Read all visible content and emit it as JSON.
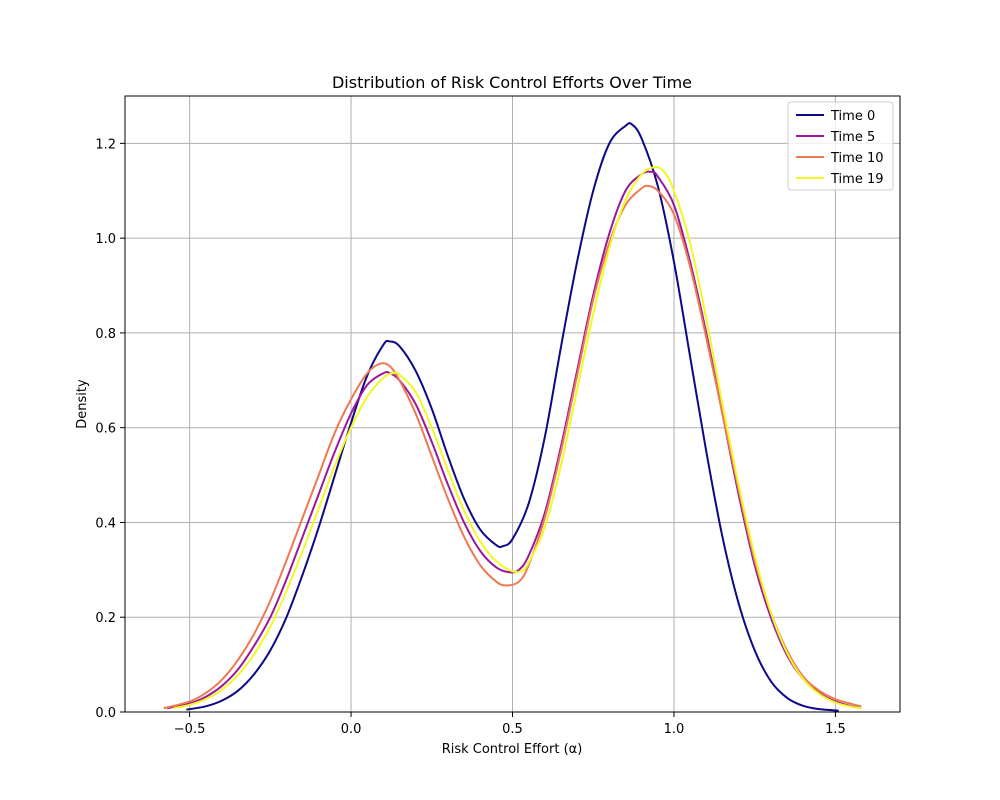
{
  "chart_data": {
    "type": "line",
    "title": "Distribution of Risk Control Efforts Over Time",
    "xlabel": "Risk Control Effort (α)",
    "ylabel": "Density",
    "xlim": [
      -0.7,
      1.7
    ],
    "ylim": [
      0.0,
      1.3
    ],
    "xticks": [
      -0.5,
      0.0,
      0.5,
      1.0,
      1.5
    ],
    "xtick_labels": [
      "−0.5",
      "0.0",
      "0.5",
      "1.0",
      "1.5"
    ],
    "yticks": [
      0.0,
      0.2,
      0.4,
      0.6,
      0.8,
      1.0,
      1.2
    ],
    "ytick_labels": [
      "0.0",
      "0.2",
      "0.4",
      "0.6",
      "0.8",
      "1.0",
      "1.2"
    ],
    "grid": true,
    "legend_position": "top-right",
    "series": [
      {
        "name": "Time 0",
        "color": "#0d0887",
        "points": [
          [
            -0.51,
            0.005
          ],
          [
            -0.45,
            0.012
          ],
          [
            -0.4,
            0.024
          ],
          [
            -0.35,
            0.045
          ],
          [
            -0.3,
            0.08
          ],
          [
            -0.25,
            0.13
          ],
          [
            -0.2,
            0.2
          ],
          [
            -0.15,
            0.29
          ],
          [
            -0.1,
            0.39
          ],
          [
            -0.05,
            0.5
          ],
          [
            0.0,
            0.61
          ],
          [
            0.05,
            0.71
          ],
          [
            0.1,
            0.775
          ],
          [
            0.12,
            0.782
          ],
          [
            0.15,
            0.772
          ],
          [
            0.2,
            0.72
          ],
          [
            0.25,
            0.64
          ],
          [
            0.3,
            0.54
          ],
          [
            0.35,
            0.45
          ],
          [
            0.4,
            0.385
          ],
          [
            0.45,
            0.352
          ],
          [
            0.47,
            0.35
          ],
          [
            0.5,
            0.365
          ],
          [
            0.55,
            0.44
          ],
          [
            0.6,
            0.58
          ],
          [
            0.65,
            0.77
          ],
          [
            0.7,
            0.95
          ],
          [
            0.75,
            1.1
          ],
          [
            0.8,
            1.2
          ],
          [
            0.85,
            1.237
          ],
          [
            0.87,
            1.24
          ],
          [
            0.9,
            1.21
          ],
          [
            0.95,
            1.11
          ],
          [
            1.0,
            0.95
          ],
          [
            1.05,
            0.75
          ],
          [
            1.1,
            0.55
          ],
          [
            1.15,
            0.37
          ],
          [
            1.2,
            0.23
          ],
          [
            1.25,
            0.13
          ],
          [
            1.3,
            0.065
          ],
          [
            1.35,
            0.03
          ],
          [
            1.4,
            0.013
          ],
          [
            1.45,
            0.006
          ],
          [
            1.51,
            0.003
          ]
        ]
      },
      {
        "name": "Time 5",
        "color": "#9c179e",
        "points": [
          [
            -0.57,
            0.008
          ],
          [
            -0.5,
            0.018
          ],
          [
            -0.45,
            0.032
          ],
          [
            -0.4,
            0.055
          ],
          [
            -0.35,
            0.09
          ],
          [
            -0.3,
            0.14
          ],
          [
            -0.25,
            0.2
          ],
          [
            -0.2,
            0.28
          ],
          [
            -0.15,
            0.37
          ],
          [
            -0.1,
            0.46
          ],
          [
            -0.05,
            0.55
          ],
          [
            0.0,
            0.63
          ],
          [
            0.05,
            0.69
          ],
          [
            0.1,
            0.715
          ],
          [
            0.12,
            0.715
          ],
          [
            0.15,
            0.7
          ],
          [
            0.2,
            0.65
          ],
          [
            0.25,
            0.57
          ],
          [
            0.3,
            0.48
          ],
          [
            0.35,
            0.4
          ],
          [
            0.4,
            0.34
          ],
          [
            0.45,
            0.305
          ],
          [
            0.49,
            0.295
          ],
          [
            0.52,
            0.3
          ],
          [
            0.55,
            0.33
          ],
          [
            0.6,
            0.42
          ],
          [
            0.65,
            0.56
          ],
          [
            0.7,
            0.72
          ],
          [
            0.75,
            0.88
          ],
          [
            0.8,
            1.01
          ],
          [
            0.85,
            1.1
          ],
          [
            0.9,
            1.135
          ],
          [
            0.93,
            1.14
          ],
          [
            0.95,
            1.13
          ],
          [
            1.0,
            1.07
          ],
          [
            1.05,
            0.95
          ],
          [
            1.1,
            0.8
          ],
          [
            1.15,
            0.63
          ],
          [
            1.2,
            0.46
          ],
          [
            1.25,
            0.31
          ],
          [
            1.3,
            0.2
          ],
          [
            1.35,
            0.12
          ],
          [
            1.4,
            0.07
          ],
          [
            1.45,
            0.04
          ],
          [
            1.5,
            0.022
          ],
          [
            1.55,
            0.012
          ],
          [
            1.58,
            0.008
          ]
        ]
      },
      {
        "name": "Time 10",
        "color": "#ed7953",
        "points": [
          [
            -0.58,
            0.008
          ],
          [
            -0.5,
            0.022
          ],
          [
            -0.45,
            0.04
          ],
          [
            -0.4,
            0.068
          ],
          [
            -0.35,
            0.11
          ],
          [
            -0.3,
            0.165
          ],
          [
            -0.25,
            0.235
          ],
          [
            -0.2,
            0.32
          ],
          [
            -0.15,
            0.41
          ],
          [
            -0.1,
            0.5
          ],
          [
            -0.05,
            0.59
          ],
          [
            0.0,
            0.66
          ],
          [
            0.05,
            0.715
          ],
          [
            0.09,
            0.735
          ],
          [
            0.12,
            0.73
          ],
          [
            0.15,
            0.7
          ],
          [
            0.2,
            0.63
          ],
          [
            0.25,
            0.54
          ],
          [
            0.3,
            0.45
          ],
          [
            0.35,
            0.37
          ],
          [
            0.4,
            0.31
          ],
          [
            0.45,
            0.275
          ],
          [
            0.48,
            0.267
          ],
          [
            0.52,
            0.275
          ],
          [
            0.55,
            0.31
          ],
          [
            0.6,
            0.41
          ],
          [
            0.65,
            0.55
          ],
          [
            0.7,
            0.71
          ],
          [
            0.75,
            0.87
          ],
          [
            0.8,
            0.99
          ],
          [
            0.85,
            1.07
          ],
          [
            0.9,
            1.105
          ],
          [
            0.92,
            1.11
          ],
          [
            0.95,
            1.1
          ],
          [
            1.0,
            1.05
          ],
          [
            1.05,
            0.94
          ],
          [
            1.1,
            0.79
          ],
          [
            1.15,
            0.63
          ],
          [
            1.2,
            0.47
          ],
          [
            1.25,
            0.32
          ],
          [
            1.3,
            0.21
          ],
          [
            1.35,
            0.13
          ],
          [
            1.4,
            0.075
          ],
          [
            1.45,
            0.045
          ],
          [
            1.5,
            0.027
          ],
          [
            1.55,
            0.017
          ],
          [
            1.58,
            0.012
          ]
        ]
      },
      {
        "name": "Time 19",
        "color": "#f0f921",
        "points": [
          [
            -0.55,
            0.008
          ],
          [
            -0.5,
            0.015
          ],
          [
            -0.45,
            0.027
          ],
          [
            -0.4,
            0.047
          ],
          [
            -0.35,
            0.078
          ],
          [
            -0.3,
            0.122
          ],
          [
            -0.25,
            0.18
          ],
          [
            -0.2,
            0.255
          ],
          [
            -0.15,
            0.34
          ],
          [
            -0.1,
            0.43
          ],
          [
            -0.05,
            0.52
          ],
          [
            0.0,
            0.6
          ],
          [
            0.05,
            0.665
          ],
          [
            0.1,
            0.705
          ],
          [
            0.13,
            0.715
          ],
          [
            0.15,
            0.712
          ],
          [
            0.2,
            0.675
          ],
          [
            0.25,
            0.6
          ],
          [
            0.3,
            0.51
          ],
          [
            0.35,
            0.425
          ],
          [
            0.4,
            0.36
          ],
          [
            0.45,
            0.318
          ],
          [
            0.5,
            0.297
          ],
          [
            0.53,
            0.298
          ],
          [
            0.55,
            0.315
          ],
          [
            0.6,
            0.39
          ],
          [
            0.65,
            0.52
          ],
          [
            0.7,
            0.68
          ],
          [
            0.75,
            0.84
          ],
          [
            0.8,
            0.98
          ],
          [
            0.85,
            1.08
          ],
          [
            0.9,
            1.135
          ],
          [
            0.94,
            1.15
          ],
          [
            0.97,
            1.14
          ],
          [
            1.0,
            1.1
          ],
          [
            1.05,
            0.99
          ],
          [
            1.1,
            0.83
          ],
          [
            1.15,
            0.65
          ],
          [
            1.2,
            0.48
          ],
          [
            1.25,
            0.33
          ],
          [
            1.3,
            0.21
          ],
          [
            1.35,
            0.125
          ],
          [
            1.4,
            0.07
          ],
          [
            1.45,
            0.038
          ],
          [
            1.5,
            0.02
          ],
          [
            1.55,
            0.011
          ],
          [
            1.58,
            0.008
          ]
        ]
      }
    ]
  }
}
